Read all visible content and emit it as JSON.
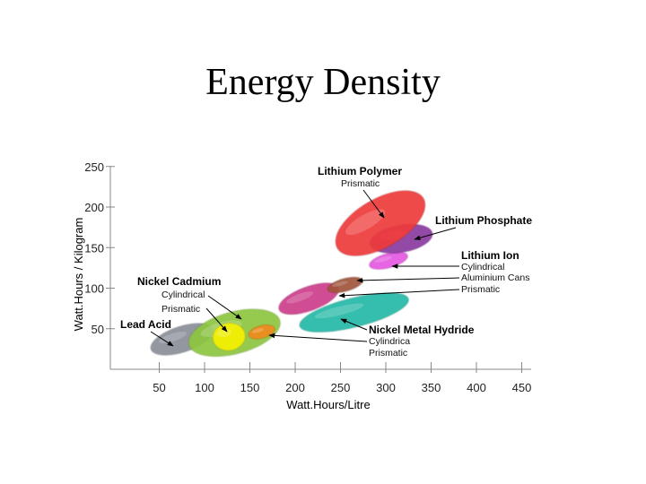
{
  "chart_data": {
    "type": "scatter",
    "title": "Energy Density",
    "xlabel": "Watt.Hours/Litre",
    "ylabel": "Watt.Hours / Kilogram",
    "xlim": [
      0,
      450
    ],
    "ylim": [
      0,
      250
    ],
    "x_ticks": [
      "50",
      "100",
      "150",
      "200",
      "250",
      "300",
      "350",
      "400",
      "450"
    ],
    "y_ticks": [
      "50",
      "100",
      "150",
      "200",
      "250"
    ],
    "grid": false,
    "regions": [
      {
        "name": "Lead Acid",
        "x": 75,
        "y": 37,
        "rx": 36,
        "ry": 16,
        "angle": -18,
        "color": "#8a8e98"
      },
      {
        "name": "Nickel Cadmium",
        "x": 133,
        "y": 45,
        "rx": 52,
        "ry": 26,
        "angle": -15,
        "color": "#8cc63f"
      },
      {
        "name": "Nickel Cadmium Cylindrical",
        "x": 127,
        "y": 40,
        "rx": 18,
        "ry": 17,
        "angle": -10,
        "color": "#f5f000"
      },
      {
        "name": "Nickel Cadmium Prismatic",
        "x": 163,
        "y": 46,
        "rx": 15,
        "ry": 8,
        "angle": -15,
        "color": "#f08a1c"
      },
      {
        "name": "Nickel Metal Hydride",
        "x": 265,
        "y": 70,
        "rx": 62,
        "ry": 18,
        "angle": -14,
        "color": "#22b8a6"
      },
      {
        "name": "Lithium Ion Prismatic",
        "x": 215,
        "y": 87,
        "rx": 35,
        "ry": 15,
        "angle": -20,
        "color": "#cc3c8a"
      },
      {
        "name": "Lithium Ion Aluminium Cans",
        "x": 255,
        "y": 104,
        "rx": 20,
        "ry": 8,
        "angle": -15,
        "color": "#a0553a"
      },
      {
        "name": "Lithium Ion Cylindrical",
        "x": 303,
        "y": 134,
        "rx": 22,
        "ry": 9,
        "angle": -15,
        "color": "#e458e0"
      },
      {
        "name": "Lithium Phosphate",
        "x": 317,
        "y": 161,
        "rx": 35,
        "ry": 17,
        "angle": -10,
        "color": "#8a3aa0"
      },
      {
        "name": "Lithium Polymer",
        "x": 294,
        "y": 180,
        "rx": 55,
        "ry": 30,
        "angle": -30,
        "color": "#ee3b3b"
      }
    ],
    "annotations": [
      {
        "title": "Lithium Polymer",
        "subs": [
          "Prismatic"
        ]
      },
      {
        "title": "Lithium Phosphate",
        "subs": []
      },
      {
        "title": "Lithium Ion",
        "subs": [
          "Cylindrical",
          "Aluminium Cans",
          "Prismatic"
        ]
      },
      {
        "title": "Nickel Cadmium",
        "subs": [
          "Cylindrical",
          "Prismatic"
        ]
      },
      {
        "title": "Lead Acid",
        "subs": []
      },
      {
        "title": "Nickel Metal Hydride",
        "subs": [
          "Cylindrica",
          "Prismatic"
        ]
      }
    ]
  }
}
